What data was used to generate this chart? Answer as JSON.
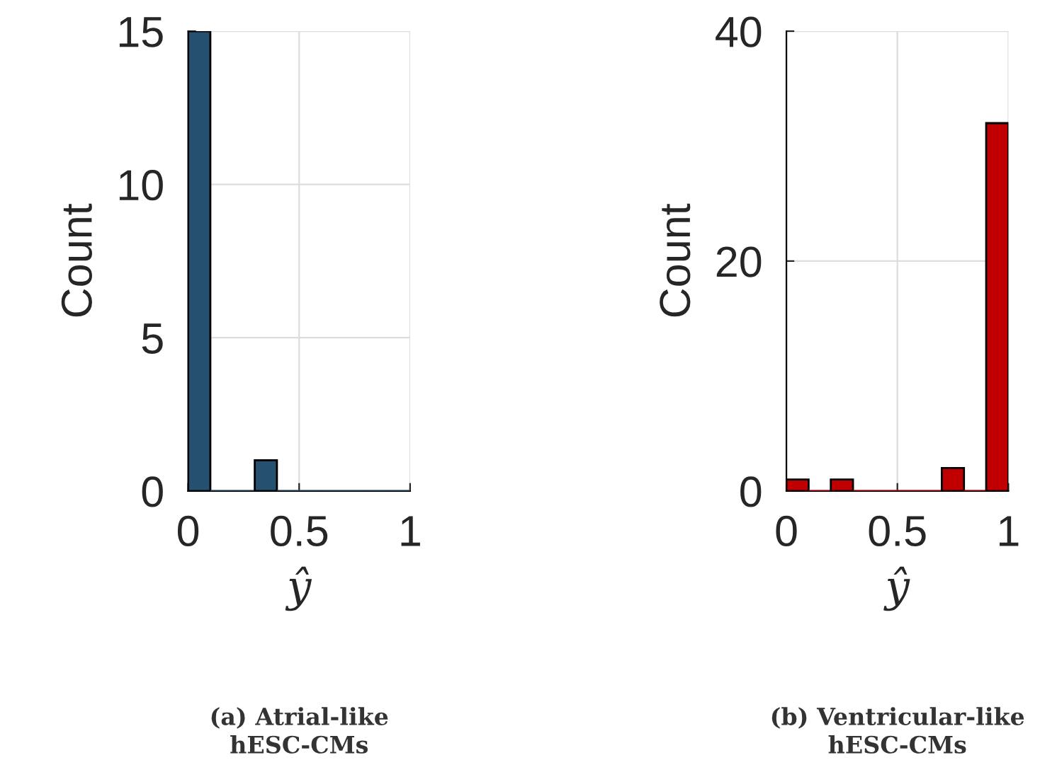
{
  "chart_data": [
    {
      "type": "histogram",
      "bins": [
        0,
        0.1,
        0.2,
        0.3,
        0.4,
        0.5,
        0.6,
        0.7,
        0.8,
        0.9,
        1.0
      ],
      "values": [
        15,
        0,
        0,
        1,
        0,
        0,
        0,
        0,
        0,
        0
      ],
      "color": "#26506f",
      "xlabel": "ŷ",
      "ylabel": "Count",
      "xlim": [
        0,
        1
      ],
      "xticks": [
        0,
        0.5,
        1
      ],
      "ylim": [
        0,
        15
      ],
      "yticks": [
        0,
        5,
        10,
        15
      ],
      "grid": true,
      "annotations": [
        "(a) Atrial-like\nhESC-CMs"
      ]
    },
    {
      "type": "histogram",
      "bins": [
        0,
        0.1,
        0.2,
        0.3,
        0.4,
        0.5,
        0.6,
        0.7,
        0.8,
        0.9,
        1.0
      ],
      "values": [
        1,
        0,
        1,
        0,
        0,
        0,
        0,
        2,
        0,
        32
      ],
      "color": "#c00000",
      "xlabel": "ŷ",
      "ylabel": "Count",
      "xlim": [
        0,
        1
      ],
      "xticks": [
        0,
        0.5,
        1
      ],
      "ylim": [
        0,
        40
      ],
      "yticks": [
        0,
        20,
        40
      ],
      "grid": true,
      "annotations": [
        "(b) Ventricular-like\nhESC-CMs"
      ]
    }
  ]
}
